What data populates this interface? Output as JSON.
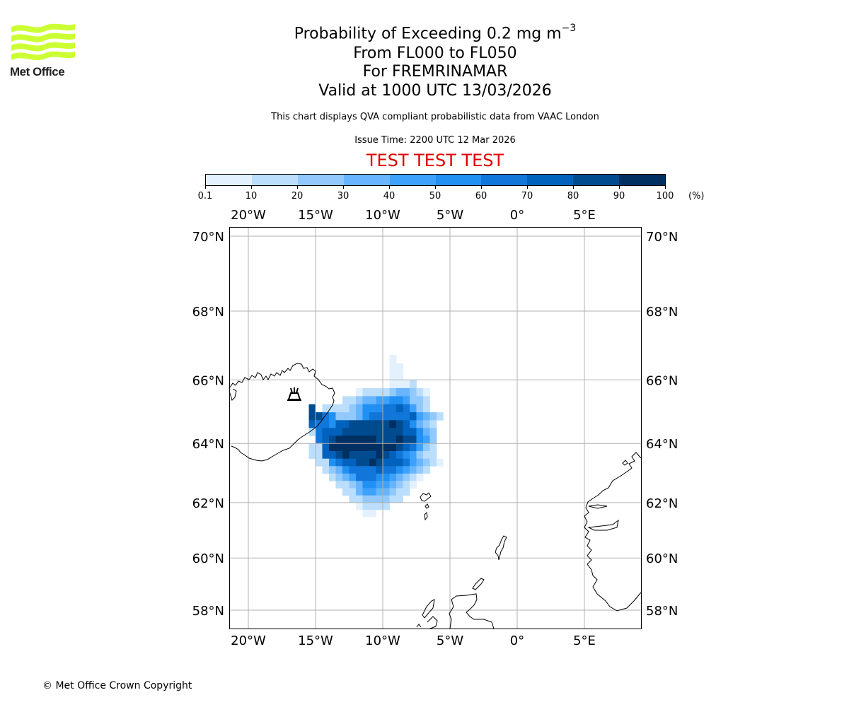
{
  "logo": {
    "text": "Met Office",
    "color": "#ccff33"
  },
  "header": {
    "title_main": "Probability of Exceeding 0.2 mg m",
    "title_exponent": "−3",
    "level_range": "From FL000 to FL050",
    "volcano": "For FREMRINAMAR",
    "valid": "Valid at 1000 UTC 13/03/2026",
    "disclaimer": "This chart displays QVA compliant probabilistic data from VAAC London",
    "issue_time": "Issue Time: 2200 UTC 12 Mar 2026",
    "test_banner": "TEST TEST TEST",
    "test_color": "#e00000"
  },
  "colorbar": {
    "ticks": [
      "0.1",
      "10",
      "20",
      "30",
      "40",
      "50",
      "60",
      "70",
      "80",
      "90",
      "100"
    ],
    "unit": "(%)",
    "colors": [
      "#e3f1fe",
      "#bbdefc",
      "#92c9fd",
      "#68b5fd",
      "#3ea2fd",
      "#2090f2",
      "#1176d9",
      "#0062bc",
      "#004b90",
      "#002f61"
    ]
  },
  "footer": {
    "copyright": "© Met Office Crown Copyright"
  },
  "chart_data": {
    "type": "heatmap",
    "title": "Probability of Exceeding 0.2 mg m−3",
    "units": "%",
    "lon_range": [
      -21.4,
      9.2
    ],
    "lat_range": [
      57.4,
      70.3
    ],
    "lon_ticks": [
      -20,
      -15,
      -10,
      -5,
      0,
      5
    ],
    "lon_tick_labels": [
      "20°W",
      "15°W",
      "10°W",
      "5°W",
      "0°",
      "5°E"
    ],
    "lat_ticks": [
      70,
      68,
      66,
      64,
      62,
      60,
      58
    ],
    "lat_tick_labels": [
      "70°N",
      "68°N",
      "66°N",
      "64°N",
      "62°N",
      "60°N",
      "58°N"
    ],
    "grid": true,
    "volcano": {
      "name": "FREMRINAMAR",
      "lon": -16.65,
      "lat": 65.43
    },
    "cell": {
      "dlon": 0.5,
      "dlat": 0.25
    },
    "grid_origin": {
      "lon": -16.5,
      "lat_top": 66.75
    },
    "rows": [
      "..............0.........",
      "..............00........",
      "..............00........",
      "..............0001......",
      ".........01111233210....",
      ".......1123344554221....",
      "..8.1111235556676421....",
      "..88652223566666674321..",
      "..7665778888889875321...",
      "..1677788888888877532...",
      "...678999999888988542...",
      "..1179999999999876421...",
      "..1177898888987654211...",
      "...1156778898777643210..",
      "....1235666676654321....",
      ".....12346665543210.....",
      "......112355443210......",
      ".......1134433211.......",
      "........11222211........",
      ".........01111..........",
      "..........00............"
    ]
  }
}
